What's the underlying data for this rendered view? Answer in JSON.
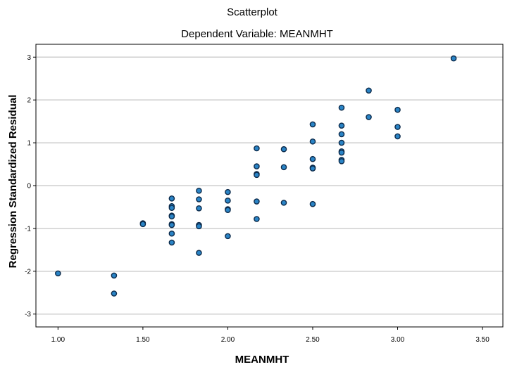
{
  "chart_data": {
    "type": "scatter",
    "title": "Scatterplot",
    "subtitle": "Dependent Variable: MEANMHT",
    "xlabel": "MEANMHT",
    "ylabel": "Regression Standardized Residual",
    "xlim": [
      0.87,
      3.62
    ],
    "ylim": [
      -3.3,
      3.3
    ],
    "xticks": [
      "1.00",
      "1.50",
      "2.00",
      "2.50",
      "3.00",
      "3.50"
    ],
    "xtick_values": [
      1.0,
      1.5,
      2.0,
      2.5,
      3.0,
      3.5
    ],
    "yticks": [
      "3",
      "2",
      "1",
      "0",
      "-1",
      "-2",
      "-3"
    ],
    "ytick_values": [
      3,
      2,
      1,
      0,
      -1,
      -2,
      -3
    ],
    "grid": "horizontal",
    "point_color": "#2a84c6",
    "series": [
      {
        "x": [
          1.0,
          1.33,
          1.33,
          1.5,
          1.5,
          1.67,
          1.67,
          1.67,
          1.67,
          1.67,
          1.67,
          1.67,
          1.67,
          1.67,
          1.83,
          1.83,
          1.83,
          1.83,
          1.83,
          1.83,
          2.0,
          2.0,
          2.0,
          2.0,
          2.0,
          2.17,
          2.17,
          2.17,
          2.17,
          2.17,
          2.17,
          2.33,
          2.33,
          2.33,
          2.5,
          2.5,
          2.5,
          2.5,
          2.5,
          2.5,
          2.67,
          2.67,
          2.67,
          2.67,
          2.67,
          2.67,
          2.67,
          2.67,
          2.83,
          2.83,
          3.0,
          3.0,
          3.0,
          3.33
        ],
        "y": [
          -2.05,
          -2.1,
          -2.52,
          -0.88,
          -0.9,
          -0.3,
          -0.48,
          -0.52,
          -0.7,
          -0.72,
          -0.9,
          -0.92,
          -1.12,
          -1.33,
          -0.12,
          -0.32,
          -0.53,
          -0.92,
          -0.95,
          -1.57,
          -0.15,
          -0.35,
          -0.55,
          -0.57,
          -1.18,
          0.87,
          0.45,
          0.27,
          0.25,
          -0.37,
          -0.78,
          0.85,
          0.43,
          -0.4,
          1.43,
          1.03,
          0.62,
          0.42,
          0.4,
          -0.43,
          1.82,
          1.4,
          1.2,
          1.0,
          0.8,
          0.77,
          0.6,
          0.57,
          2.22,
          1.6,
          1.77,
          1.37,
          1.15,
          2.97
        ]
      }
    ]
  }
}
